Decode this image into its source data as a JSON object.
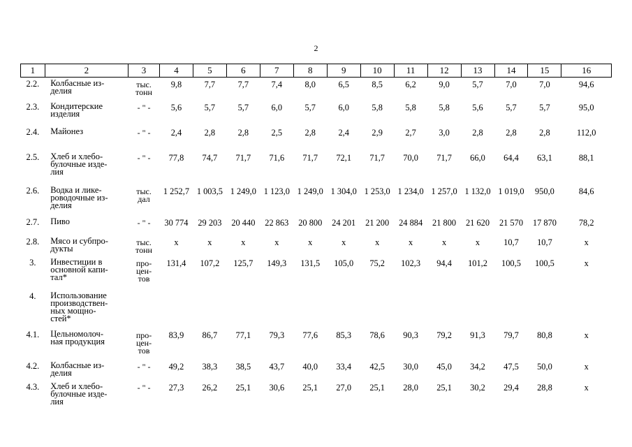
{
  "page_number": "2",
  "header": [
    "1",
    "2",
    "3",
    "4",
    "5",
    "6",
    "7",
    "8",
    "9",
    "10",
    "11",
    "12",
    "13",
    "14",
    "15",
    "16"
  ],
  "rows": [
    {
      "code": "2.2.",
      "name": [
        "Колбасные из-",
        "делия"
      ],
      "unit": [
        "тыс.",
        "тонн"
      ],
      "values": [
        "9,8",
        "7,7",
        "7,7",
        "7,4",
        "8,0",
        "6,5",
        "8,5",
        "6,2",
        "9,0",
        "5,7",
        "7,0",
        "7,0"
      ],
      "last": "94,6"
    },
    {
      "code": "2.3.",
      "name": [
        "Кондитерские",
        "изделия"
      ],
      "unit": [
        "- \" -"
      ],
      "values": [
        "5,6",
        "5,7",
        "5,7",
        "6,0",
        "5,7",
        "6,0",
        "5,8",
        "5,8",
        "5,8",
        "5,6",
        "5,7",
        "5,7"
      ],
      "last": "95,0"
    },
    {
      "code": "2.4.",
      "name": [
        "Майонез"
      ],
      "unit": [
        "- \" -"
      ],
      "values": [
        "2,4",
        "2,8",
        "2,8",
        "2,5",
        "2,8",
        "2,4",
        "2,9",
        "2,7",
        "3,0",
        "2,8",
        "2,8",
        "2,8"
      ],
      "last": "112,0"
    },
    {
      "code": "2.5.",
      "name": [
        "Хлеб и хлебо-",
        "булочные изде-",
        "лия"
      ],
      "unit": [
        "- \" -"
      ],
      "values": [
        "77,8",
        "74,7",
        "71,7",
        "71,6",
        "71,7",
        "72,1",
        "71,7",
        "70,0",
        "71,7",
        "66,0",
        "64,4",
        "63,1"
      ],
      "last": "88,1"
    },
    {
      "code": "2.6.",
      "name": [
        "Водка и лике-",
        "роводочные из-",
        "делия"
      ],
      "unit": [
        "тыс.",
        "дал"
      ],
      "values": [
        "1 252,7",
        "1 003,5",
        "1 249,0",
        "1 123,0",
        "1 249,0",
        "1 304,0",
        "1 253,0",
        "1 234,0",
        "1 257,0",
        "1 132,0",
        "1 019,0",
        "950,0"
      ],
      "last": "84,6"
    },
    {
      "code": "2.7.",
      "name": [
        "Пиво"
      ],
      "unit": [
        "- \" -"
      ],
      "values": [
        "30 774",
        "29 203",
        "20 440",
        "22 863",
        "20 800",
        "24 201",
        "21 200",
        "24 884",
        "21 800",
        "21 620",
        "21 570",
        "17 870"
      ],
      "last": "78,2"
    },
    {
      "code": "2.8.",
      "name": [
        "Мясо и субпро-",
        "дукты"
      ],
      "unit": [
        "тыс.",
        "тонн"
      ],
      "values": [
        "х",
        "х",
        "х",
        "х",
        "х",
        "х",
        "х",
        "х",
        "х",
        "х",
        "10,7",
        "10,7"
      ],
      "last": "х"
    },
    {
      "code": "3.",
      "name": [
        "Инвестиции в",
        "основной капи-",
        "тал*"
      ],
      "unit": [
        "про-",
        "цен-",
        "тов"
      ],
      "values": [
        "131,4",
        "107,2",
        "125,7",
        "149,3",
        "131,5",
        "105,0",
        "75,2",
        "102,3",
        "94,4",
        "101,2",
        "100,5",
        "100,5"
      ],
      "last": "х"
    },
    {
      "code": "4.",
      "name": [
        "Использование",
        "производствен-",
        "ных мощно-",
        "стей*"
      ],
      "unit": [],
      "values": [
        "",
        "",
        "",
        "",
        "",
        "",
        "",
        "",
        "",
        "",
        "",
        ""
      ],
      "last": ""
    },
    {
      "code": "4.1.",
      "name": [
        "Цельномолоч-",
        "ная продукция"
      ],
      "unit": [
        "про-",
        "цен-",
        "тов"
      ],
      "values": [
        "83,9",
        "86,7",
        "77,1",
        "79,3",
        "77,6",
        "85,3",
        "78,6",
        "90,3",
        "79,2",
        "91,3",
        "79,7",
        "80,8"
      ],
      "last": "х"
    },
    {
      "code": "4.2.",
      "name": [
        "Колбасные из-",
        "делия"
      ],
      "unit": [
        "- \" -"
      ],
      "values": [
        "49,2",
        "38,3",
        "38,5",
        "43,7",
        "40,0",
        "33,4",
        "42,5",
        "30,0",
        "45,0",
        "34,2",
        "47,5",
        "50,0"
      ],
      "last": "х"
    },
    {
      "code": "4.3.",
      "name": [
        "Хлеб и хлебо-",
        "булочные изде-",
        "лия"
      ],
      "unit": [
        "- \" -"
      ],
      "values": [
        "27,3",
        "26,2",
        "25,1",
        "30,6",
        "25,1",
        "27,0",
        "25,1",
        "28,0",
        "25,1",
        "30,2",
        "29,4",
        "28,8"
      ],
      "last": "х"
    }
  ]
}
